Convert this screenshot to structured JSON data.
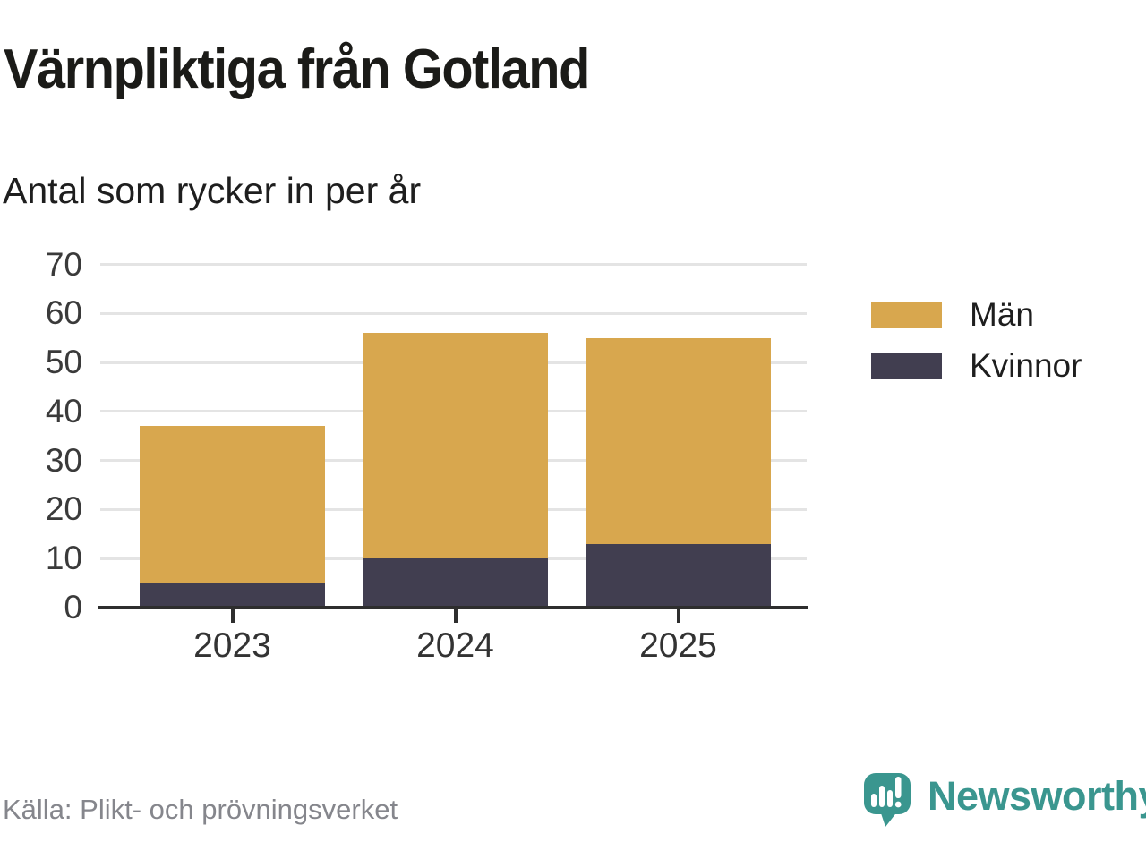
{
  "title": "Värnpliktiga från Gotland",
  "subtitle": "Antal som rycker in per år",
  "source": "Källa: Plikt- och prövningsverket",
  "brand": {
    "name": "Newsworthy",
    "color": "#3a968f"
  },
  "colors": {
    "men": "#d8a74e",
    "women": "#413e50",
    "grid": "#e4e4e4",
    "axis": "#2e2e2e",
    "title_text": "#1b1b18",
    "source_text": "#85868c",
    "brand_teal": "#3a968f"
  },
  "legend": [
    {
      "label": "Män",
      "color": "#d8a74e"
    },
    {
      "label": "Kvinnor",
      "color": "#413e50"
    }
  ],
  "chart_data": {
    "type": "bar",
    "stacked": true,
    "title": "Värnpliktiga från Gotland",
    "subtitle": "Antal som rycker in per år",
    "categories": [
      "2023",
      "2024",
      "2025"
    ],
    "series": [
      {
        "name": "Män",
        "color": "#d8a74e",
        "values": [
          32,
          46,
          42
        ]
      },
      {
        "name": "Kvinnor",
        "color": "#413e50",
        "values": [
          5,
          10,
          13
        ]
      }
    ],
    "stack_order_bottom_up": [
      "Kvinnor",
      "Män"
    ],
    "totals": [
      37,
      56,
      55
    ],
    "xlabel": "",
    "ylabel": "",
    "ylim": [
      0,
      70
    ],
    "yticks": [
      0,
      10,
      20,
      30,
      40,
      50,
      60,
      70
    ],
    "grid": true,
    "legend_position": "right"
  }
}
